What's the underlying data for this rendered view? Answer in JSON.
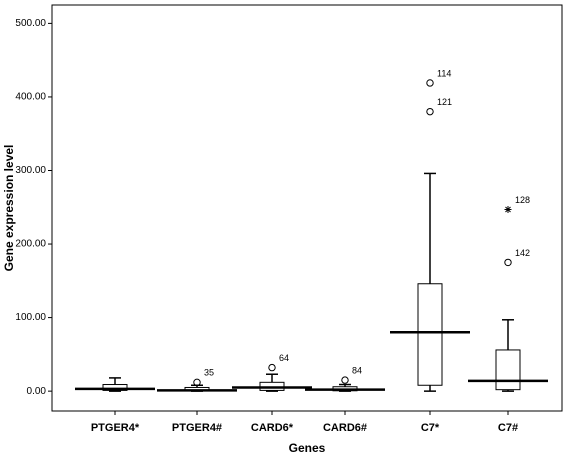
{
  "chart_data": {
    "type": "box",
    "x_label": "Genes",
    "y_label": "Gene expression level",
    "categories": [
      "PTGER4*",
      "PTGER4#",
      "CARD6*",
      "CARD6#",
      "C7*",
      "C7#"
    ],
    "boxes": [
      {
        "min": 0,
        "q1": 1,
        "median": 3,
        "q3": 9,
        "max": 18,
        "outliers": []
      },
      {
        "min": 0,
        "q1": 0.5,
        "median": 1,
        "q3": 5,
        "max": 8,
        "outliers": [
          {
            "value": 12,
            "case": 35,
            "marker": "circle"
          }
        ]
      },
      {
        "min": 0,
        "q1": 1,
        "median": 5,
        "q3": 12,
        "max": 23,
        "outliers": [
          {
            "value": 32,
            "case": 64,
            "marker": "circle"
          }
        ]
      },
      {
        "min": 0,
        "q1": 0.5,
        "median": 2,
        "q3": 6,
        "max": 9,
        "outliers": [
          {
            "value": 15,
            "case": 84,
            "marker": "circle"
          }
        ]
      },
      {
        "min": 0,
        "q1": 8,
        "median": 80,
        "q3": 146,
        "max": 296,
        "outliers": [
          {
            "value": 380,
            "case": 121,
            "marker": "circle"
          },
          {
            "value": 419,
            "case": 114,
            "marker": "circle"
          }
        ]
      },
      {
        "min": 0,
        "q1": 2,
        "median": 14,
        "q3": 56,
        "max": 97,
        "outliers": [
          {
            "value": 175,
            "case": 142,
            "marker": "circle"
          },
          {
            "value": 247,
            "case": 128,
            "marker": "star"
          }
        ]
      }
    ],
    "ylim": [
      -27,
      525
    ],
    "yticks": [
      {
        "value": 0,
        "label": "0.00"
      },
      {
        "value": 100,
        "label": "100.00"
      },
      {
        "value": 200,
        "label": "200.00"
      },
      {
        "value": 300,
        "label": "300.00"
      },
      {
        "value": 400,
        "label": "400.00"
      },
      {
        "value": 500,
        "label": "500.00"
      }
    ]
  }
}
